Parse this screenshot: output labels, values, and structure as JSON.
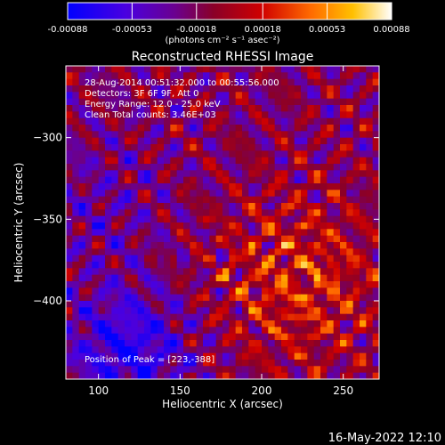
{
  "chart_data": {
    "type": "heatmap",
    "title": "Reconstructed RHESSI Image",
    "xlabel": "Heliocentric X (arcsec)",
    "ylabel": "Heliocentric Y (arcsec)",
    "xlim": [
      80,
      272
    ],
    "ylim": [
      -448,
      -256
    ],
    "x_ticks": [
      100,
      150,
      200,
      250
    ],
    "y_ticks": [
      -300,
      -350,
      -400
    ],
    "colorbar": {
      "min": -0.00088,
      "max": 0.00088,
      "ticks": [
        -0.00088,
        -0.00053,
        -0.00018,
        0.00018,
        0.00053,
        0.00088
      ],
      "tick_labels": [
        "-0.00088",
        "-0.00053",
        "-0.00018",
        "0.00018",
        "0.00053",
        "0.00088"
      ],
      "units": "(photons cm⁻² s⁻¹ asec⁻²)",
      "colormap": [
        "#0000ff",
        "#5b00d8",
        "#8a0030",
        "#cc0000",
        "#ff5a00",
        "#ffb000",
        "#ffffd8",
        "#ffffff"
      ]
    },
    "annotations": [
      "28-Aug-2014 00:51:32.000 to 00:55:56.000",
      "Detectors: 3F 6F 9F, Att 0",
      "Energy Range: 12.0 - 25.0 keV",
      "Clean     Total counts: 3.46E+03"
    ],
    "peak_label": "Position of Peak = [223,-388]",
    "peak": [
      223,
      -388
    ],
    "dimmest": [
      118,
      -430
    ]
  },
  "footer": {
    "date_stamp": "16-May-2022 12:10"
  }
}
